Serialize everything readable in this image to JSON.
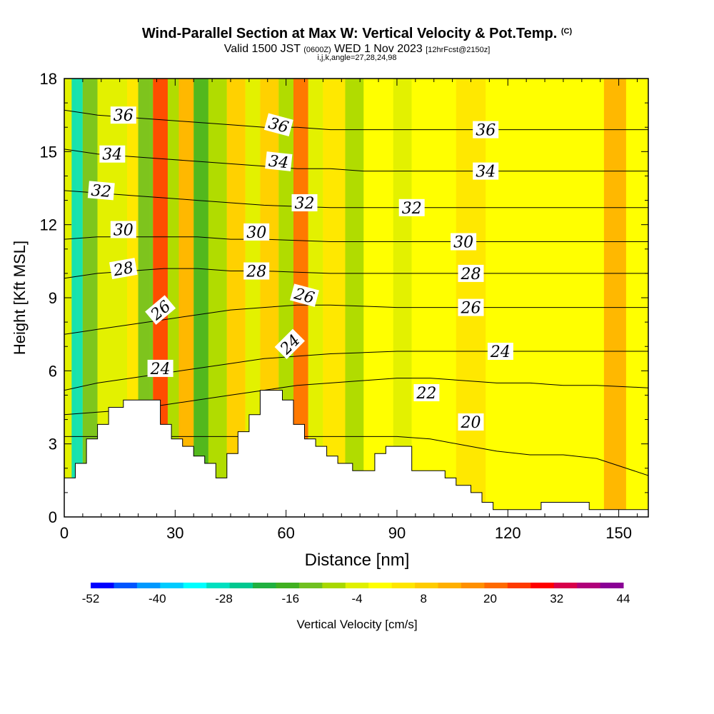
{
  "title": {
    "main": "Wind-Parallel Section at Max W: Vertical Velocity & Pot.Temp.",
    "main_unit": "(C)",
    "valid_prefix": "Valid 1500 JST",
    "valid_utc": "(0600Z)",
    "valid_date": "WED 1 Nov 2023",
    "forecast": "[12hrFcst@2150z]",
    "params": "i,j,k,angle=27,28,24,98"
  },
  "chart_data": {
    "type": "heatmap",
    "xlabel": "Distance [nm]",
    "ylabel": "Height [Kft MSL]",
    "xlim": [
      0,
      158
    ],
    "ylim": [
      0,
      18
    ],
    "xticks": [
      0,
      30,
      60,
      90,
      120,
      150
    ],
    "yticks": [
      0,
      3,
      6,
      9,
      12,
      15,
      18
    ],
    "colorbar": {
      "label": "Vertical Velocity [cm/s]",
      "tick_labels": [
        "-52",
        "-40",
        "-28",
        "-16",
        "-4",
        "8",
        "20",
        "32",
        "44"
      ],
      "colors": [
        "#0000ff",
        "#0055ff",
        "#0099ff",
        "#00ccff",
        "#00ffff",
        "#00e0c0",
        "#00c890",
        "#20b040",
        "#40b020",
        "#70c020",
        "#a8d800",
        "#e0f000",
        "#ffff00",
        "#ffe600",
        "#ffcc00",
        "#ffb000",
        "#ff9000",
        "#ff6a00",
        "#ff3a00",
        "#ff0000",
        "#d8004a",
        "#b0007a",
        "#8a0095"
      ]
    },
    "terrain": [
      [
        0,
        1.6
      ],
      [
        3,
        1.6
      ],
      [
        3,
        2.2
      ],
      [
        6,
        2.2
      ],
      [
        6,
        3.2
      ],
      [
        9,
        3.2
      ],
      [
        9,
        3.8
      ],
      [
        12,
        3.8
      ],
      [
        12,
        4.5
      ],
      [
        16,
        4.5
      ],
      [
        16,
        4.8
      ],
      [
        26,
        4.8
      ],
      [
        26,
        3.8
      ],
      [
        29,
        3.8
      ],
      [
        29,
        3.2
      ],
      [
        32,
        3.2
      ],
      [
        32,
        2.9
      ],
      [
        35,
        2.9
      ],
      [
        35,
        2.5
      ],
      [
        38,
        2.5
      ],
      [
        38,
        2.2
      ],
      [
        41,
        2.2
      ],
      [
        41,
        1.6
      ],
      [
        44,
        1.6
      ],
      [
        44,
        2.6
      ],
      [
        47,
        2.6
      ],
      [
        47,
        3.5
      ],
      [
        50,
        3.5
      ],
      [
        50,
        4.2
      ],
      [
        53,
        4.2
      ],
      [
        53,
        5.2
      ],
      [
        59,
        5.2
      ],
      [
        59,
        4.8
      ],
      [
        62,
        4.8
      ],
      [
        62,
        3.8
      ],
      [
        65,
        3.8
      ],
      [
        65,
        3.2
      ],
      [
        68,
        3.2
      ],
      [
        68,
        2.9
      ],
      [
        71,
        2.9
      ],
      [
        71,
        2.5
      ],
      [
        74,
        2.5
      ],
      [
        74,
        2.2
      ],
      [
        78,
        2.2
      ],
      [
        78,
        1.9
      ],
      [
        84,
        1.9
      ],
      [
        84,
        2.6
      ],
      [
        87,
        2.6
      ],
      [
        87,
        2.9
      ],
      [
        94,
        2.9
      ],
      [
        94,
        1.9
      ],
      [
        103,
        1.9
      ],
      [
        103,
        1.6
      ],
      [
        106,
        1.6
      ],
      [
        106,
        1.3
      ],
      [
        110,
        1.3
      ],
      [
        110,
        1.0
      ],
      [
        113,
        1.0
      ],
      [
        113,
        0.6
      ],
      [
        116,
        0.6
      ],
      [
        116,
        0.3
      ],
      [
        129,
        0.3
      ],
      [
        129,
        0.6
      ],
      [
        142,
        0.6
      ],
      [
        142,
        0.3
      ],
      [
        158,
        0.3
      ]
    ],
    "theta_contours": [
      {
        "label": "20",
        "y": [
          3.3,
          3.3,
          3.3,
          3.3,
          3.3,
          3.3,
          3.3,
          3.3,
          3.3,
          3.3,
          3.3,
          3.2,
          2.95,
          2.7,
          2.55,
          2.55,
          2.4,
          1.7
        ]
      },
      {
        "label": "22",
        "y": [
          4.2,
          4.3,
          4.4,
          4.6,
          4.8,
          5.0,
          5.2,
          5.4,
          5.5,
          5.6,
          5.7,
          5.7,
          5.6,
          5.5,
          5.5,
          5.4,
          5.4,
          5.3
        ]
      },
      {
        "label": "24",
        "y": [
          5.2,
          5.5,
          5.7,
          5.9,
          6.1,
          6.3,
          6.5,
          6.6,
          6.7,
          6.75,
          6.8,
          6.8,
          6.8,
          6.8,
          6.8,
          6.8,
          6.8,
          6.8
        ]
      },
      {
        "label": "26",
        "y": [
          7.5,
          7.7,
          7.9,
          8.1,
          8.3,
          8.5,
          8.6,
          8.7,
          8.7,
          8.65,
          8.6,
          8.6,
          8.6,
          8.6,
          8.6,
          8.6,
          8.6,
          8.6
        ]
      },
      {
        "label": "28",
        "y": [
          9.8,
          10.0,
          10.1,
          10.2,
          10.2,
          10.1,
          10.1,
          10.05,
          10.0,
          10.0,
          10.0,
          10.0,
          10.0,
          10.0,
          10.0,
          10.0,
          10.0,
          10.0
        ]
      },
      {
        "label": "30",
        "y": [
          11.4,
          11.5,
          11.5,
          11.5,
          11.5,
          11.4,
          11.4,
          11.35,
          11.3,
          11.3,
          11.3,
          11.3,
          11.3,
          11.3,
          11.3,
          11.3,
          11.3,
          11.3
        ]
      },
      {
        "label": "32",
        "y": [
          13.4,
          13.3,
          13.2,
          13.1,
          13.0,
          12.9,
          12.8,
          12.75,
          12.7,
          12.7,
          12.7,
          12.7,
          12.7,
          12.7,
          12.7,
          12.7,
          12.7,
          12.7
        ]
      },
      {
        "label": "34",
        "y": [
          15.1,
          14.9,
          14.8,
          14.7,
          14.6,
          14.5,
          14.4,
          14.3,
          14.3,
          14.2,
          14.2,
          14.2,
          14.2,
          14.2,
          14.2,
          14.2,
          14.2,
          14.2
        ]
      },
      {
        "label": "36",
        "y": [
          16.7,
          16.5,
          16.4,
          16.3,
          16.2,
          16.1,
          16.0,
          16.0,
          15.9,
          15.9,
          15.9,
          15.9,
          15.9,
          15.9,
          15.9,
          15.9,
          15.9,
          15.9
        ]
      }
    ],
    "contour_x": [
      0,
      9,
      18,
      27,
      36,
      45,
      54,
      63,
      72,
      81,
      90,
      99,
      108,
      117,
      126,
      135,
      144,
      158
    ],
    "contour_labels": [
      {
        "text": "36",
        "x": 16,
        "y": 16.5,
        "angle": 0
      },
      {
        "text": "36",
        "x": 58,
        "y": 16.1,
        "angle": 15
      },
      {
        "text": "36",
        "x": 114,
        "y": 15.9,
        "angle": 0
      },
      {
        "text": "34",
        "x": 13,
        "y": 14.9,
        "angle": 0
      },
      {
        "text": "34",
        "x": 58,
        "y": 14.6,
        "angle": 6
      },
      {
        "text": "34",
        "x": 114,
        "y": 14.2,
        "angle": 0
      },
      {
        "text": "32",
        "x": 10,
        "y": 13.4,
        "angle": 5
      },
      {
        "text": "32",
        "x": 65,
        "y": 12.9,
        "angle": 0
      },
      {
        "text": "32",
        "x": 94,
        "y": 12.7,
        "angle": 0
      },
      {
        "text": "30",
        "x": 16,
        "y": 11.8,
        "angle": 0
      },
      {
        "text": "30",
        "x": 52,
        "y": 11.7,
        "angle": 0
      },
      {
        "text": "30",
        "x": 108,
        "y": 11.3,
        "angle": 0
      },
      {
        "text": "28",
        "x": 16,
        "y": 10.2,
        "angle": -10
      },
      {
        "text": "28",
        "x": 52,
        "y": 10.1,
        "angle": 0
      },
      {
        "text": "28",
        "x": 110,
        "y": 10.0,
        "angle": 0
      },
      {
        "text": "26",
        "x": 26,
        "y": 8.5,
        "angle": -40
      },
      {
        "text": "26",
        "x": 65,
        "y": 9.1,
        "angle": 15
      },
      {
        "text": "26",
        "x": 110,
        "y": 8.6,
        "angle": 0
      },
      {
        "text": "24",
        "x": 26,
        "y": 6.1,
        "angle": 0
      },
      {
        "text": "24",
        "x": 61,
        "y": 7.1,
        "angle": -45
      },
      {
        "text": "24",
        "x": 118,
        "y": 6.8,
        "angle": 0
      },
      {
        "text": "22",
        "x": 98,
        "y": 5.1,
        "angle": 0
      },
      {
        "text": "20",
        "x": 110,
        "y": 3.9,
        "angle": 0
      }
    ],
    "velocity_bands": [
      {
        "x": 0,
        "w": 3,
        "value": -4
      },
      {
        "x": 2,
        "w": 3,
        "value": -30
      },
      {
        "x": 5,
        "w": 4,
        "value": -12
      },
      {
        "x": 9,
        "w": 8,
        "value": -2
      },
      {
        "x": 17,
        "w": 6,
        "value": 6
      },
      {
        "x": 20,
        "w": 4,
        "value": -14
      },
      {
        "x": 24,
        "w": 4,
        "value": 24
      },
      {
        "x": 28,
        "w": 3,
        "value": -10
      },
      {
        "x": 31,
        "w": 4,
        "value": 14
      },
      {
        "x": 35,
        "w": 4,
        "value": -16
      },
      {
        "x": 39,
        "w": 5,
        "value": -8
      },
      {
        "x": 44,
        "w": 5,
        "value": 8
      },
      {
        "x": 49,
        "w": 4,
        "value": -6
      },
      {
        "x": 53,
        "w": 5,
        "value": 10
      },
      {
        "x": 58,
        "w": 4,
        "value": -10
      },
      {
        "x": 62,
        "w": 4,
        "value": 22
      },
      {
        "x": 66,
        "w": 4,
        "value": -6
      },
      {
        "x": 70,
        "w": 6,
        "value": 6
      },
      {
        "x": 76,
        "w": 5,
        "value": -8
      },
      {
        "x": 81,
        "w": 8,
        "value": 2
      },
      {
        "x": 89,
        "w": 5,
        "value": -3
      },
      {
        "x": 94,
        "w": 12,
        "value": 0
      },
      {
        "x": 106,
        "w": 8,
        "value": 4
      },
      {
        "x": 114,
        "w": 16,
        "value": -1
      },
      {
        "x": 130,
        "w": 16,
        "value": 1
      },
      {
        "x": 146,
        "w": 6,
        "value": 12
      },
      {
        "x": 152,
        "w": 6,
        "value": 0
      }
    ],
    "grid": false,
    "colorbar_position": "bottom"
  }
}
